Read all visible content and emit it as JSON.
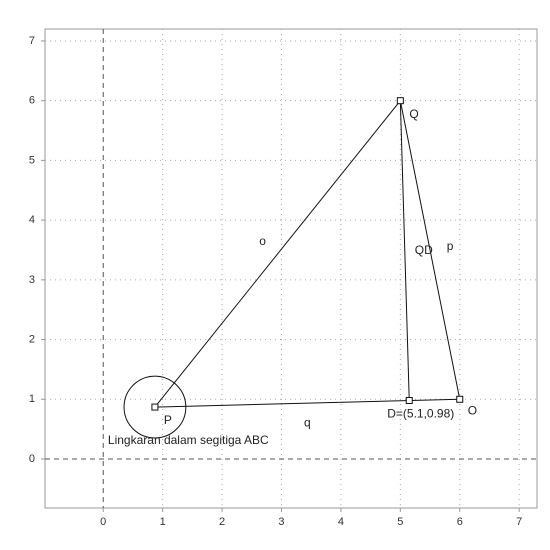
{
  "chart_data": {
    "type": "geometry",
    "xlim": [
      -0.98,
      7.3
    ],
    "ylim": [
      -0.82,
      7.2
    ],
    "xticks": [
      0,
      1,
      2,
      3,
      4,
      5,
      6,
      7
    ],
    "yticks": [
      0,
      1,
      2,
      3,
      4,
      5,
      6,
      7
    ],
    "grid": true,
    "points": [
      {
        "name": "P",
        "label": "P",
        "x": 0.87,
        "y": 0.87
      },
      {
        "name": "Q",
        "label": "Q",
        "x": 5,
        "y": 6
      },
      {
        "name": "O",
        "label": "O",
        "x": 6,
        "y": 1
      },
      {
        "name": "D",
        "label": "D=(5.1,0.98)",
        "x": 5.15,
        "y": 0.98
      }
    ],
    "segments": [
      {
        "label": "o",
        "from": "P",
        "to": "Q"
      },
      {
        "label": "p",
        "from": "Q",
        "to": "O"
      },
      {
        "label": "q",
        "from": "O",
        "to": "P"
      },
      {
        "label": "QD",
        "from": "Q",
        "to": "D"
      }
    ],
    "circle": {
      "center": "P",
      "radius": 0.52,
      "label": "Lingkaran dalam segitiga ABC"
    }
  }
}
